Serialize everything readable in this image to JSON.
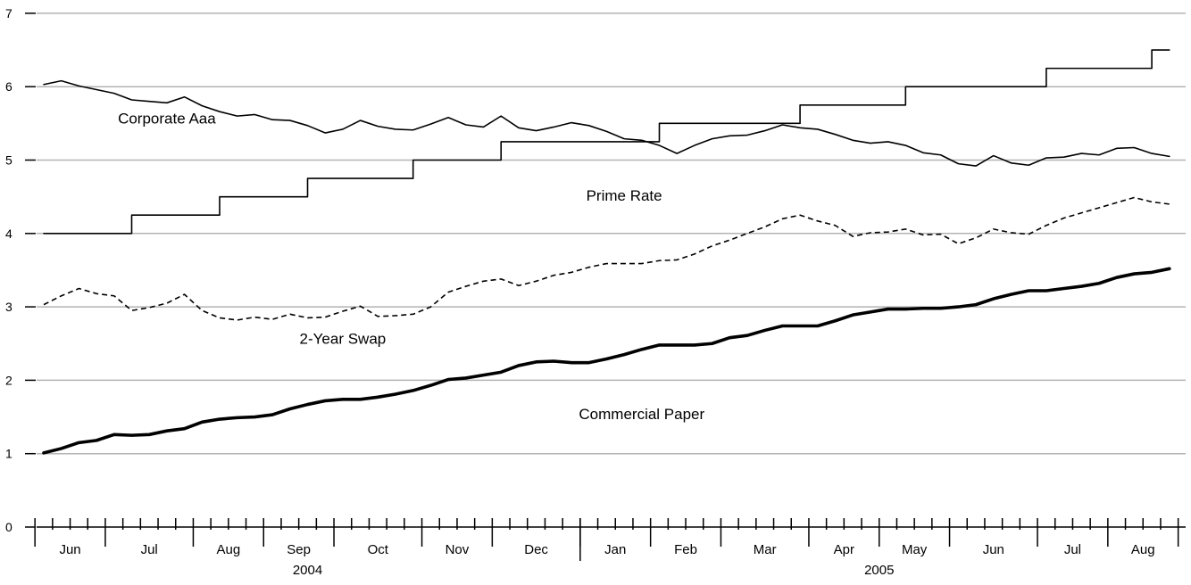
{
  "chart_data": {
    "type": "line",
    "y_ticks": [
      "0",
      "1",
      "2",
      "3",
      "4",
      "5",
      "6",
      "7"
    ],
    "ylim": [
      0,
      7
    ],
    "grid": true,
    "months": [
      {
        "label": "Jun",
        "weeks": 4
      },
      {
        "label": "Jul",
        "weeks": 5
      },
      {
        "label": "Aug",
        "weeks": 4
      },
      {
        "label": "Sep",
        "weeks": 4
      },
      {
        "label": "Oct",
        "weeks": 5
      },
      {
        "label": "Nov",
        "weeks": 4
      },
      {
        "label": "Dec",
        "weeks": 5
      },
      {
        "label": "Jan",
        "weeks": 4
      },
      {
        "label": "Feb",
        "weeks": 4
      },
      {
        "label": "Mar",
        "weeks": 5
      },
      {
        "label": "Apr",
        "weeks": 4
      },
      {
        "label": "May",
        "weeks": 4
      },
      {
        "label": "Jun",
        "weeks": 5
      },
      {
        "label": "Jul",
        "weeks": 4
      },
      {
        "label": "Aug",
        "weeks": 4
      }
    ],
    "years": [
      {
        "label": "2004",
        "start_month": 0,
        "end_month": 6
      },
      {
        "label": "2005",
        "start_month": 7,
        "end_month": 14
      }
    ],
    "series": [
      {
        "name": "Corporate Aaa",
        "style": "thin",
        "values": [
          6.03,
          6.08,
          6.01,
          5.96,
          5.91,
          5.82,
          5.8,
          5.78,
          5.86,
          5.74,
          5.66,
          5.6,
          5.62,
          5.55,
          5.54,
          5.47,
          5.37,
          5.42,
          5.54,
          5.46,
          5.42,
          5.41,
          5.49,
          5.58,
          5.48,
          5.45,
          5.6,
          5.44,
          5.4,
          5.45,
          5.51,
          5.47,
          5.39,
          5.29,
          5.27,
          5.2,
          5.09,
          5.2,
          5.29,
          5.33,
          5.34,
          5.4,
          5.48,
          5.44,
          5.42,
          5.35,
          5.27,
          5.23,
          5.25,
          5.2,
          5.1,
          5.07,
          4.95,
          4.92,
          5.06,
          4.96,
          4.93,
          5.03,
          5.04,
          5.09,
          5.07,
          5.16,
          5.17,
          5.09,
          5.05
        ]
      },
      {
        "name": "Prime Rate",
        "style": "step",
        "values": [
          4.0,
          4.0,
          4.0,
          4.0,
          4.0,
          4.25,
          4.25,
          4.25,
          4.25,
          4.25,
          4.5,
          4.5,
          4.5,
          4.5,
          4.5,
          4.75,
          4.75,
          4.75,
          4.75,
          4.75,
          4.75,
          5.0,
          5.0,
          5.0,
          5.0,
          5.0,
          5.25,
          5.25,
          5.25,
          5.25,
          5.25,
          5.25,
          5.25,
          5.25,
          5.25,
          5.5,
          5.5,
          5.5,
          5.5,
          5.5,
          5.5,
          5.5,
          5.5,
          5.75,
          5.75,
          5.75,
          5.75,
          5.75,
          5.75,
          6.0,
          6.0,
          6.0,
          6.0,
          6.0,
          6.0,
          6.0,
          6.0,
          6.25,
          6.25,
          6.25,
          6.25,
          6.25,
          6.25,
          6.5,
          6.5
        ]
      },
      {
        "name": "2-Year Swap",
        "style": "dashed",
        "values": [
          3.03,
          3.15,
          3.25,
          3.18,
          3.15,
          2.95,
          2.99,
          3.05,
          3.17,
          2.95,
          2.85,
          2.82,
          2.86,
          2.83,
          2.9,
          2.85,
          2.86,
          2.94,
          3.01,
          2.87,
          2.88,
          2.9,
          3.0,
          3.2,
          3.28,
          3.35,
          3.38,
          3.29,
          3.35,
          3.43,
          3.47,
          3.54,
          3.59,
          3.59,
          3.59,
          3.63,
          3.64,
          3.72,
          3.83,
          3.91,
          4.0,
          4.09,
          4.2,
          4.25,
          4.17,
          4.11,
          3.96,
          4.01,
          4.02,
          4.06,
          3.98,
          3.99,
          3.86,
          3.94,
          4.06,
          4.01,
          3.99,
          4.11,
          4.21,
          4.28,
          4.35,
          4.42,
          4.49,
          4.43,
          4.4
        ]
      },
      {
        "name": "Commercial Paper",
        "style": "thick",
        "values": [
          1.01,
          1.07,
          1.15,
          1.18,
          1.26,
          1.25,
          1.26,
          1.31,
          1.34,
          1.43,
          1.47,
          1.49,
          1.5,
          1.53,
          1.61,
          1.67,
          1.72,
          1.74,
          1.74,
          1.77,
          1.81,
          1.86,
          1.93,
          2.01,
          2.03,
          2.07,
          2.11,
          2.2,
          2.25,
          2.26,
          2.24,
          2.24,
          2.29,
          2.35,
          2.42,
          2.48,
          2.48,
          2.48,
          2.5,
          2.58,
          2.61,
          2.68,
          2.74,
          2.74,
          2.74,
          2.81,
          2.89,
          2.93,
          2.97,
          2.97,
          2.98,
          2.98,
          3.0,
          3.03,
          3.11,
          3.17,
          3.22,
          3.22,
          3.25,
          3.28,
          3.32,
          3.4,
          3.45,
          3.47,
          3.52
        ]
      }
    ],
    "annotations": [
      {
        "series": "Corporate Aaa",
        "text": "Corporate Aaa",
        "at_week": 7,
        "at_value": 5.5
      },
      {
        "series": "Prime Rate",
        "text": "Prime Rate",
        "at_week": 33,
        "at_value": 4.45
      },
      {
        "series": "2-Year Swap",
        "text": "2-Year Swap",
        "at_week": 17,
        "at_value": 2.5
      },
      {
        "series": "Commercial Paper",
        "text": "Commercial Paper",
        "at_week": 34,
        "at_value": 1.47
      }
    ]
  }
}
